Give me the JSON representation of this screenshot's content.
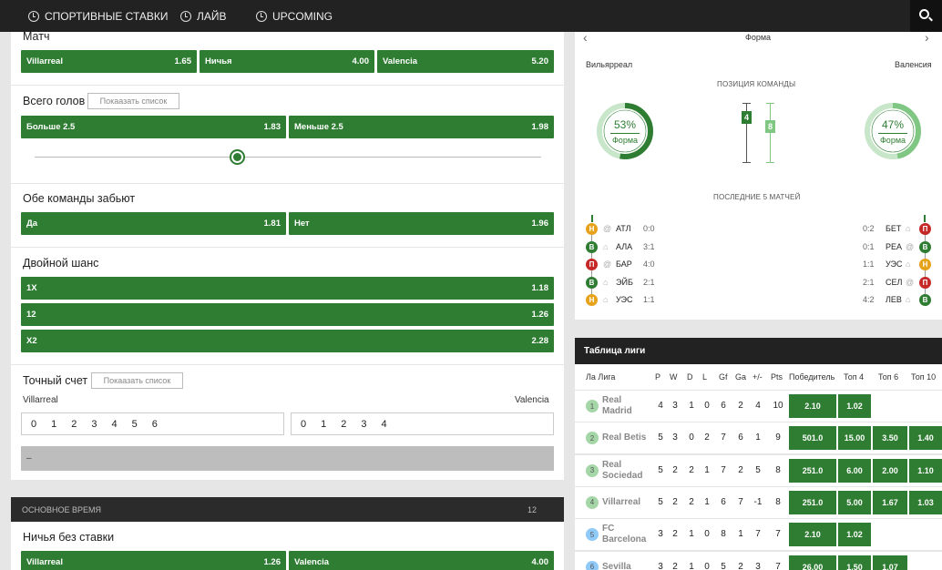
{
  "nav": {
    "sports_bets": "СПОРТИВНЫЕ СТАВКИ",
    "live": "ЛАЙВ",
    "upcoming": "UPCOMING"
  },
  "markets": {
    "match": {
      "title": "Матч",
      "home": {
        "label": "Villarreal",
        "odd": "1.65"
      },
      "draw": {
        "label": "Ничья",
        "odd": "4.00"
      },
      "away": {
        "label": "Valencia",
        "odd": "5.20"
      }
    },
    "total_goals": {
      "title": "Всего голов",
      "show_list": "Покаазать список",
      "over": {
        "label": "Больше  2.5",
        "odd": "1.83"
      },
      "under": {
        "label": "Меньше  2.5",
        "odd": "1.98"
      }
    },
    "btts": {
      "title": "Обе команды забьют",
      "yes": {
        "label": "Да",
        "odd": "1.81"
      },
      "no": {
        "label": "Нет",
        "odd": "1.96"
      }
    },
    "double_chance": {
      "title": "Двойной шанс",
      "rows": [
        {
          "label": "1X",
          "odd": "1.18"
        },
        {
          "label": "12",
          "odd": "1.26"
        },
        {
          "label": "X2",
          "odd": "2.28"
        }
      ]
    },
    "exact_score": {
      "title": "Точный счет",
      "show_list": "Покаазать список",
      "home_team": "Villarreal",
      "away_team": "Valencia",
      "home_goals": [
        "0",
        "1",
        "2",
        "3",
        "4",
        "5",
        "6"
      ],
      "away_goals": [
        "0",
        "1",
        "2",
        "3",
        "4"
      ],
      "result": "–"
    },
    "main_time": {
      "title": "ОСНОВНОЕ ВРЕМЯ",
      "count": "12"
    },
    "draw_no_bet": {
      "title": "Ничья без ставки",
      "home": {
        "label": "Villarreal",
        "odd": "1.26"
      },
      "away": {
        "label": "Valencia",
        "odd": "4.00"
      }
    }
  },
  "form": {
    "title": "Форма",
    "home_team": "Вильярреал",
    "away_team": "Валенсия",
    "position_caption": "ПОЗИЦИЯ КОМАНДЫ",
    "home_percent": "53%",
    "away_percent": "47%",
    "home_form_fraction": 0.53,
    "away_form_fraction": 0.47,
    "form_label": "Форма",
    "home_position": "4",
    "away_position": "8",
    "last5_caption": "ПОСЛЕДНИЕ 5 МАТЧЕЙ",
    "home_matches": [
      {
        "res": "Н",
        "type": "draw",
        "venue": "@",
        "opp": "АТЛ",
        "score": "0:0"
      },
      {
        "res": "В",
        "type": "win",
        "venue": "⌂",
        "opp": "АЛА",
        "score": "3:1"
      },
      {
        "res": "П",
        "type": "loss",
        "venue": "@",
        "opp": "БАР",
        "score": "4:0"
      },
      {
        "res": "В",
        "type": "win",
        "venue": "⌂",
        "opp": "ЭЙБ",
        "score": "2:1"
      },
      {
        "res": "Н",
        "type": "draw",
        "venue": "⌂",
        "opp": "УЭС",
        "score": "1:1"
      }
    ],
    "away_matches": [
      {
        "res": "П",
        "type": "loss",
        "venue": "⌂",
        "opp": "БЕТ",
        "score": "0:2"
      },
      {
        "res": "В",
        "type": "win",
        "venue": "@",
        "opp": "РЕА",
        "score": "0:1"
      },
      {
        "res": "Н",
        "type": "draw",
        "venue": "⌂",
        "opp": "УЭС",
        "score": "1:1"
      },
      {
        "res": "П",
        "type": "loss",
        "venue": "@",
        "opp": "СЕЛ",
        "score": "2:1"
      },
      {
        "res": "В",
        "type": "win",
        "venue": "⌂",
        "opp": "ЛЕВ",
        "score": "4:2"
      }
    ]
  },
  "league": {
    "title": "Таблица лиги",
    "headers": [
      "Ла Лига",
      "P",
      "W",
      "D",
      "L",
      "Gf",
      "Ga",
      "+/-",
      "Pts",
      "Победитель",
      "Топ 4",
      "Топ 6",
      "Топ 10"
    ],
    "rows": [
      {
        "rank": "1",
        "name": [
          "Real",
          "Madrid"
        ],
        "p": "4",
        "w": "3",
        "d": "1",
        "l": "0",
        "gf": "6",
        "ga": "2",
        "diff": "4",
        "pts": "10",
        "win": "2.10",
        "top4": "1.02",
        "top6": "",
        "top10": "",
        "badge": "#a5d6a7"
      },
      {
        "rank": "2",
        "name": [
          "Real Betis"
        ],
        "p": "5",
        "w": "3",
        "d": "0",
        "l": "2",
        "gf": "7",
        "ga": "6",
        "diff": "1",
        "pts": "9",
        "win": "501.0",
        "top4": "15.00",
        "top6": "3.50",
        "top10": "1.40",
        "badge": "#a5d6a7"
      },
      {
        "rank": "3",
        "name": [
          "Real",
          "Sociedad"
        ],
        "p": "5",
        "w": "2",
        "d": "2",
        "l": "1",
        "gf": "7",
        "ga": "2",
        "diff": "5",
        "pts": "8",
        "win": "251.0",
        "top4": "6.00",
        "top6": "2.00",
        "top10": "1.10",
        "badge": "#a5d6a7"
      },
      {
        "rank": "4",
        "name": [
          "Villarreal"
        ],
        "p": "5",
        "w": "2",
        "d": "2",
        "l": "1",
        "gf": "6",
        "ga": "7",
        "diff": "-1",
        "pts": "8",
        "win": "251.0",
        "top4": "5.00",
        "top6": "1.67",
        "top10": "1.03",
        "badge": "#a5d6a7"
      },
      {
        "rank": "5",
        "name": [
          "FC",
          "Barcelona"
        ],
        "p": "3",
        "w": "2",
        "d": "1",
        "l": "0",
        "gf": "8",
        "ga": "1",
        "diff": "7",
        "pts": "7",
        "win": "2.10",
        "top4": "1.02",
        "top6": "",
        "top10": "",
        "badge": "#90caf9"
      },
      {
        "rank": "6",
        "name": [
          "Sevilla"
        ],
        "p": "3",
        "w": "2",
        "d": "1",
        "l": "0",
        "gf": "5",
        "ga": "2",
        "diff": "3",
        "pts": "7",
        "win": "26.00",
        "top4": "1.50",
        "top6": "1.07",
        "top10": "",
        "badge": "#90caf9"
      }
    ]
  }
}
